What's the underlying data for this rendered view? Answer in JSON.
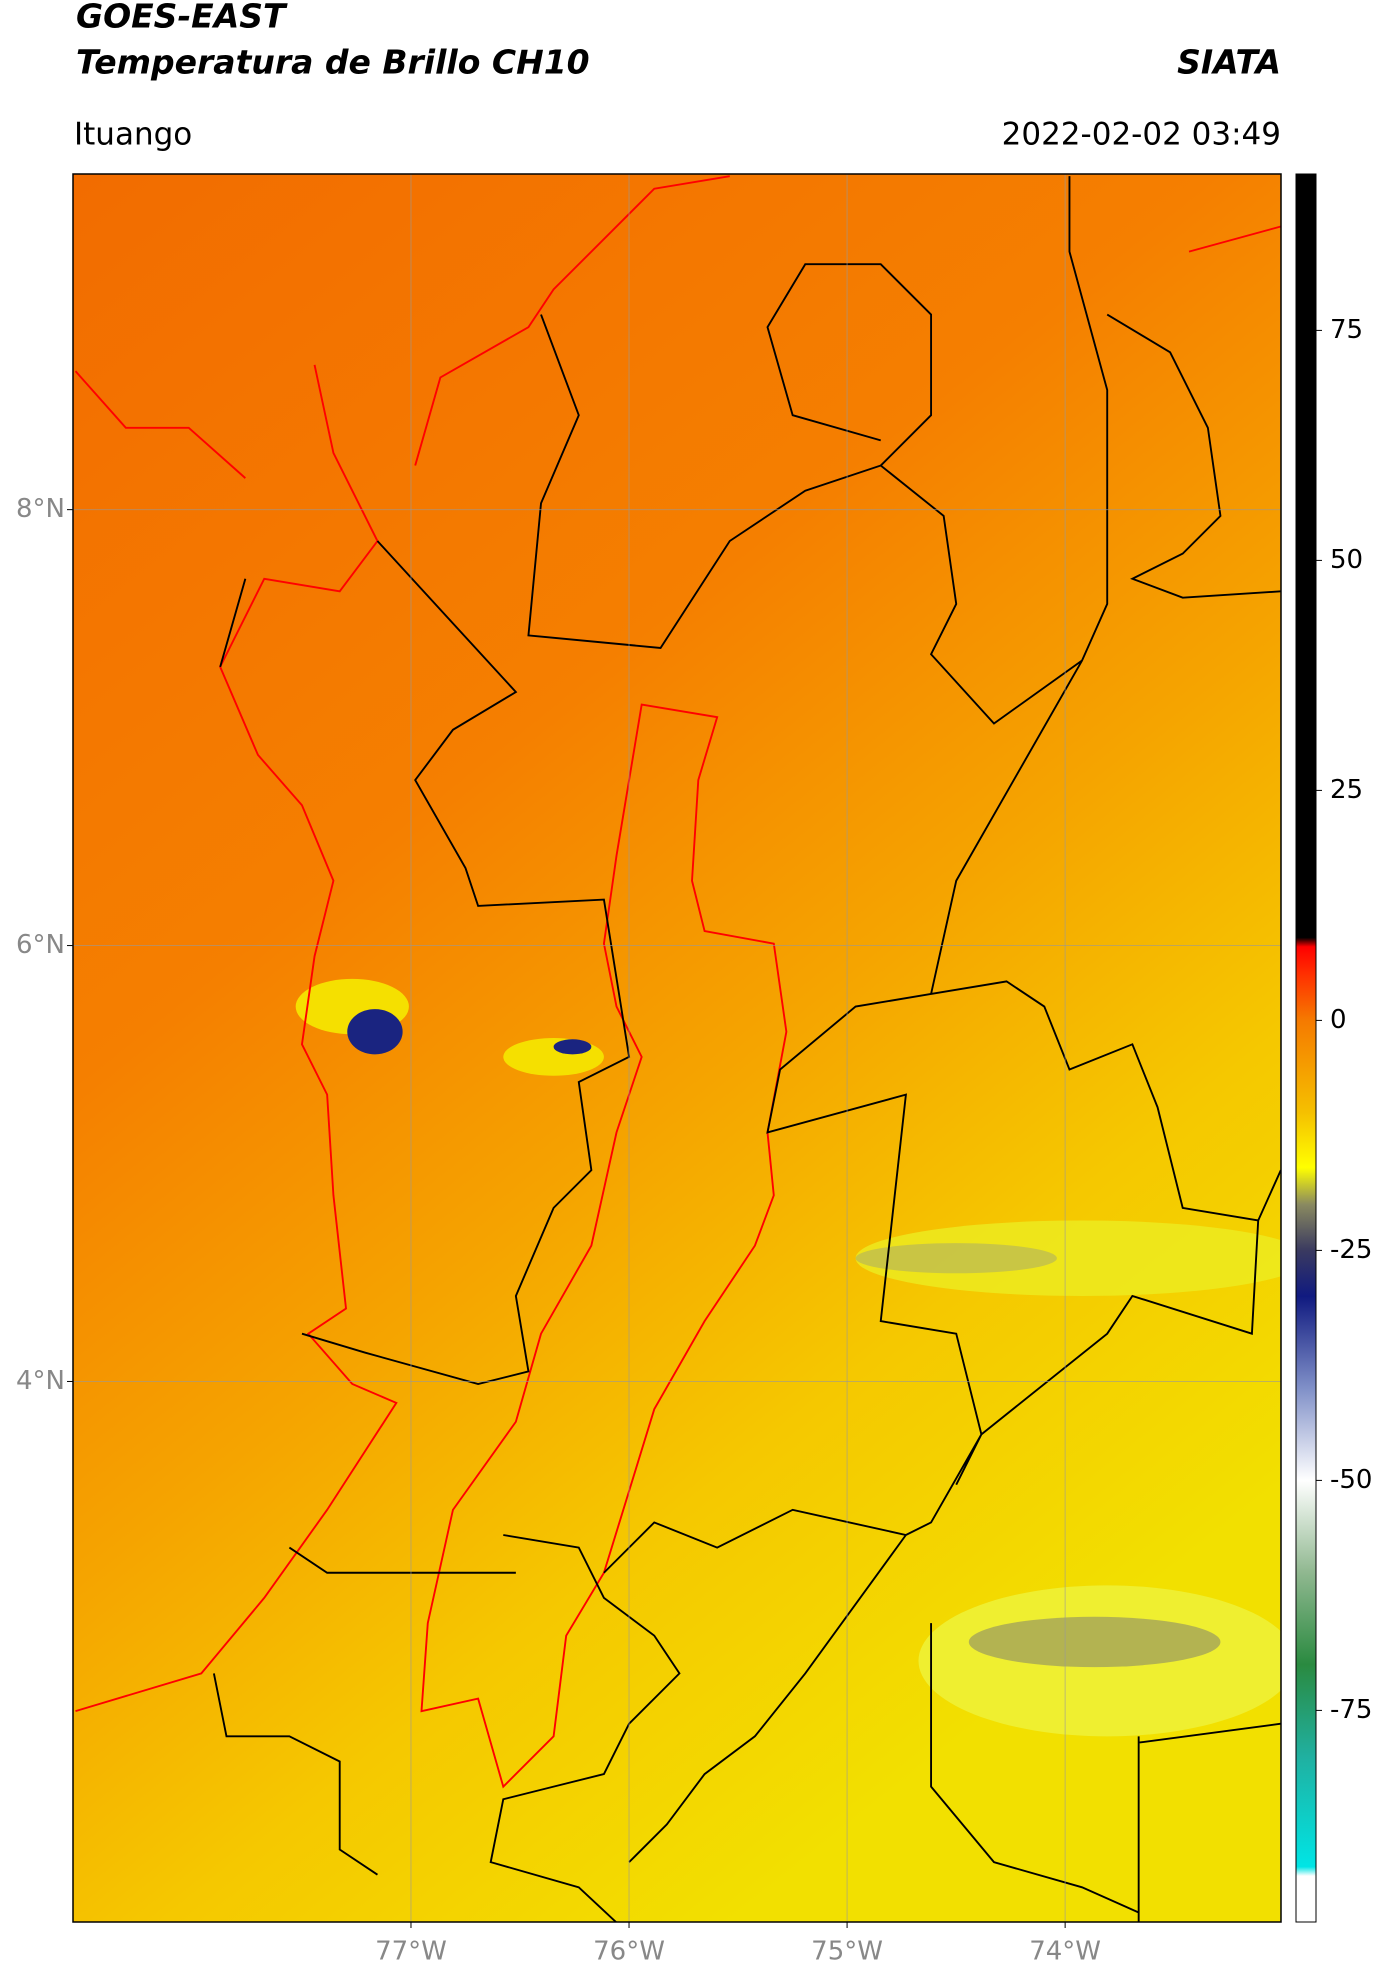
{
  "header": {
    "title": "GOES-EAST",
    "subtitle": "Temperatura de Brillo CH10",
    "source": "SIATA",
    "location": "Ituango",
    "datetime": "2022-02-02 03:49"
  },
  "map": {
    "xlim": [
      -78.55,
      -73.01
    ],
    "ylim": [
      1.52,
      9.54
    ],
    "xticks": [
      {
        "value": -77,
        "label": "77°W"
      },
      {
        "value": -76,
        "label": "76°W"
      },
      {
        "value": -75,
        "label": "75°W"
      },
      {
        "value": -74,
        "label": "74°W"
      }
    ],
    "yticks": [
      {
        "value": 8,
        "label": "8°N"
      },
      {
        "value": 6,
        "label": "6°N"
      },
      {
        "value": 4,
        "label": "4°N"
      }
    ],
    "grid": true
  },
  "colorbar": {
    "lim": [
      -98,
      92
    ],
    "ticks": [
      75,
      50,
      25,
      0,
      -25,
      -50,
      -75
    ],
    "stops": [
      {
        "value": 92,
        "color": "#000000"
      },
      {
        "value": 9,
        "color": "#000000"
      },
      {
        "value": 8,
        "color": "#ff0000"
      },
      {
        "value": 5,
        "color": "#ff3000"
      },
      {
        "value": 0,
        "color": "#f57a00"
      },
      {
        "value": -10,
        "color": "#f5c000"
      },
      {
        "value": -16,
        "color": "#ffff00"
      },
      {
        "value": -20,
        "color": "#8a8a60"
      },
      {
        "value": -25,
        "color": "#3a3a60"
      },
      {
        "value": -30,
        "color": "#101a80"
      },
      {
        "value": -40,
        "color": "#8090c8"
      },
      {
        "value": -50,
        "color": "#ffffff"
      },
      {
        "value": -60,
        "color": "#90b890"
      },
      {
        "value": -70,
        "color": "#2a8a40"
      },
      {
        "value": -80,
        "color": "#20b0a0"
      },
      {
        "value": -92,
        "color": "#00e5e5"
      },
      {
        "value": -93,
        "color": "#ffffff"
      },
      {
        "value": -98,
        "color": "#ffffff"
      }
    ]
  }
}
